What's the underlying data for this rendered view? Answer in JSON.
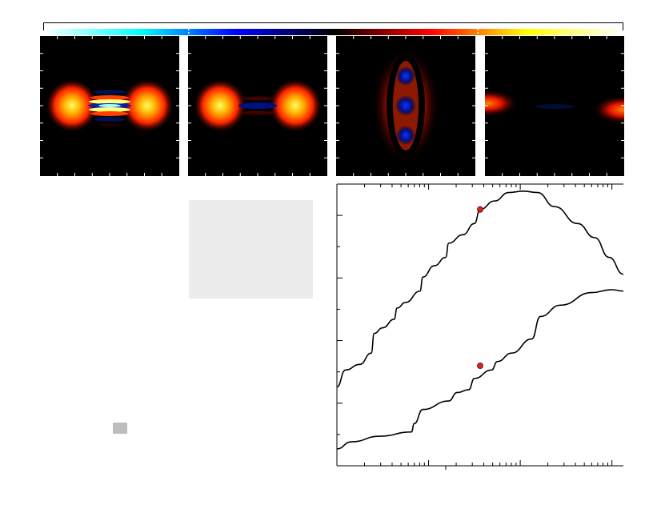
{
  "colorbar": {
    "stops": [
      "#ffffff",
      "#00ffff",
      "#0000ff",
      "#000000",
      "#ff0000",
      "#ffff00",
      "#ffffff"
    ]
  },
  "panels": [
    {
      "name": "panel-1",
      "pattern": "two-lobes-with-strong-center-fringes"
    },
    {
      "name": "panel-2",
      "pattern": "two-lobes-with-weak-center-fringes"
    },
    {
      "name": "panel-3",
      "pattern": "vertical-ring-with-blue-spots"
    },
    {
      "name": "panel-4",
      "pattern": "lobes-at-edges"
    }
  ],
  "colors": {
    "marker": "#e02020",
    "line": "#000000",
    "panel_bg": "#000000"
  },
  "chart_data": {
    "type": "line",
    "title": "",
    "xlabel": "",
    "ylabel": "",
    "xscale": "log",
    "grid": false,
    "series": [
      {
        "values": [
          [
            0.0,
            0.72
          ],
          [
            0.03,
            0.66
          ],
          [
            0.08,
            0.64
          ],
          [
            0.12,
            0.6
          ],
          [
            0.13,
            0.53
          ],
          [
            0.16,
            0.51
          ],
          [
            0.2,
            0.48
          ],
          [
            0.21,
            0.44
          ],
          [
            0.24,
            0.42
          ],
          [
            0.29,
            0.38
          ],
          [
            0.3,
            0.33
          ],
          [
            0.34,
            0.29
          ],
          [
            0.38,
            0.26
          ],
          [
            0.39,
            0.21
          ],
          [
            0.44,
            0.18
          ],
          [
            0.48,
            0.14
          ],
          [
            0.5,
            0.09
          ],
          [
            0.55,
            0.06
          ],
          [
            0.6,
            0.03
          ],
          [
            0.65,
            0.025
          ],
          [
            0.7,
            0.03
          ],
          [
            0.76,
            0.08
          ],
          [
            0.84,
            0.14
          ],
          [
            0.9,
            0.19
          ],
          [
            0.95,
            0.26
          ],
          [
            1.0,
            0.32
          ]
        ],
        "markers": [
          [
            0.5,
            0.09
          ]
        ]
      },
      {
        "values": [
          [
            0.0,
            0.94
          ],
          [
            0.05,
            0.915
          ],
          [
            0.15,
            0.895
          ],
          [
            0.26,
            0.88
          ],
          [
            0.27,
            0.85
          ],
          [
            0.3,
            0.8
          ],
          [
            0.39,
            0.77
          ],
          [
            0.42,
            0.74
          ],
          [
            0.46,
            0.73
          ],
          [
            0.48,
            0.69
          ],
          [
            0.54,
            0.66
          ],
          [
            0.56,
            0.63
          ],
          [
            0.61,
            0.6
          ],
          [
            0.68,
            0.55
          ],
          [
            0.71,
            0.47
          ],
          [
            0.78,
            0.43
          ],
          [
            0.89,
            0.385
          ],
          [
            0.96,
            0.375
          ],
          [
            1.0,
            0.38
          ]
        ],
        "markers": [
          [
            0.5,
            0.645
          ]
        ]
      }
    ]
  }
}
